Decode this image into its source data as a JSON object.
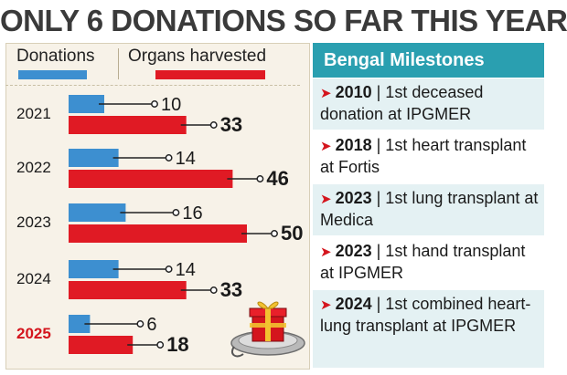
{
  "headline": "ONLY 6 DONATIONS SO FAR THIS YEAR",
  "legend": {
    "donations_label": "Donations",
    "organs_label": "Organs harvested"
  },
  "colors": {
    "donations": "#3d8fd0",
    "organs": "#e01a24",
    "highlight_year": "#d4151d",
    "sidebar_header": "#2a9fb0"
  },
  "chart_data": {
    "type": "bar",
    "orientation": "horizontal",
    "categories": [
      "2021",
      "2022",
      "2023",
      "2024",
      "2025"
    ],
    "highlight_category": "2025",
    "series": [
      {
        "name": "Donations",
        "values": [
          10,
          14,
          16,
          14,
          6
        ]
      },
      {
        "name": "Organs harvested",
        "values": [
          33,
          46,
          50,
          33,
          18
        ]
      }
    ],
    "legend_position": "top",
    "grid": false
  },
  "sidebar": {
    "title": "Bengal Milestones",
    "items": [
      {
        "year": "2010",
        "text": "| 1st deceased donation at IPGMER"
      },
      {
        "year": "2018",
        "text": "| 1st heart transplant at Fortis"
      },
      {
        "year": "2023",
        "text": "| 1st lung transplant at Medica"
      },
      {
        "year": "2023",
        "text": "| 1st hand transplant at IPGMER"
      },
      {
        "year": "2024",
        "text": "| 1st combined heart-lung transplant at IPGMER"
      }
    ],
    "arrow_glyph": "➤"
  },
  "illustration": {
    "icon": "gift-box-on-tray-icon"
  }
}
